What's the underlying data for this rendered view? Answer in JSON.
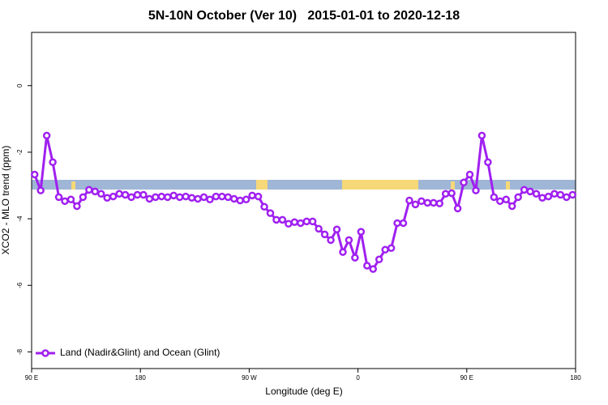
{
  "chart_data": {
    "type": "line",
    "title": "5N-10N October (Ver 10)   2015-01-01 to 2020-12-18",
    "xlabel": "Longitude (deg E)",
    "ylabel": "XCO2 - MLO trend (ppm)",
    "xlim": [
      90,
      540
    ],
    "ylim": [
      -8.5,
      1.6
    ],
    "xticks": [
      {
        "value": 90,
        "label": "90 E"
      },
      {
        "value": 180,
        "label": "180"
      },
      {
        "value": 270,
        "label": "90 W"
      },
      {
        "value": 360,
        "label": "0"
      },
      {
        "value": 450,
        "label": "90 E"
      },
      {
        "value": 540,
        "label": "180"
      }
    ],
    "yticks": [
      0,
      -2,
      -4,
      -6,
      -8
    ],
    "legend": "bottom-left",
    "x": [
      92.5,
      97.5,
      102.5,
      107.5,
      112.5,
      117.5,
      122.5,
      127.5,
      132.5,
      137.5,
      142.5,
      147.5,
      152.5,
      157.5,
      162.5,
      167.5,
      172.5,
      177.5,
      182.5,
      187.5,
      192.5,
      197.5,
      202.5,
      207.5,
      212.5,
      217.5,
      222.5,
      227.5,
      232.5,
      237.5,
      242.5,
      247.5,
      252.5,
      257.5,
      262.5,
      267.5,
      272.5,
      277.5,
      282.5,
      287.5,
      292.5,
      297.5,
      302.5,
      307.5,
      312.5,
      317.5,
      322.5,
      327.5,
      332.5,
      337.5,
      342.5,
      347.5,
      352.5,
      357.5,
      362.5,
      367.5,
      372.5,
      377.5,
      382.5,
      387.5,
      392.5,
      397.5,
      402.5,
      407.5,
      412.5,
      417.5,
      422.5,
      427.5,
      432.5,
      437.5,
      442.5,
      447.5,
      452.5,
      457.5,
      462.5,
      467.5,
      472.5,
      477.5,
      482.5,
      487.5,
      492.5,
      497.5,
      502.5,
      507.5,
      512.5,
      517.5,
      522.5,
      527.5,
      532.5,
      537.5
    ],
    "series": [
      {
        "name": "Land (Nadir&Glint) and Ocean (Glint)",
        "color": "#a020f0",
        "values": [
          -2.67,
          -3.15,
          -1.5,
          -2.3,
          -3.35,
          -3.47,
          -3.42,
          -3.62,
          -3.35,
          -3.13,
          -3.18,
          -3.25,
          -3.37,
          -3.33,
          -3.25,
          -3.28,
          -3.35,
          -3.28,
          -3.28,
          -3.4,
          -3.35,
          -3.33,
          -3.35,
          -3.3,
          -3.35,
          -3.33,
          -3.37,
          -3.4,
          -3.35,
          -3.42,
          -3.33,
          -3.33,
          -3.35,
          -3.4,
          -3.45,
          -3.42,
          -3.3,
          -3.33,
          -3.64,
          -3.83,
          -4.03,
          -4.03,
          -4.15,
          -4.1,
          -4.13,
          -4.08,
          -4.08,
          -4.3,
          -4.47,
          -4.64,
          -4.32,
          -5.0,
          -4.64,
          -5.17,
          -4.39,
          -5.41,
          -5.51,
          -5.22,
          -4.93,
          -4.88,
          -4.13,
          -4.13,
          -3.45,
          -3.57,
          -3.47,
          -3.52,
          -3.52,
          -3.54,
          -3.25,
          -3.23,
          -3.69,
          -2.91,
          -2.67,
          -3.15,
          -1.5,
          -2.3,
          -3.35,
          -3.47,
          -3.42,
          -3.62,
          -3.35,
          -3.13,
          -3.18,
          -3.25,
          -3.37,
          -3.33,
          -3.25,
          -3.28,
          -3.35,
          -3.28
        ]
      }
    ]
  }
}
